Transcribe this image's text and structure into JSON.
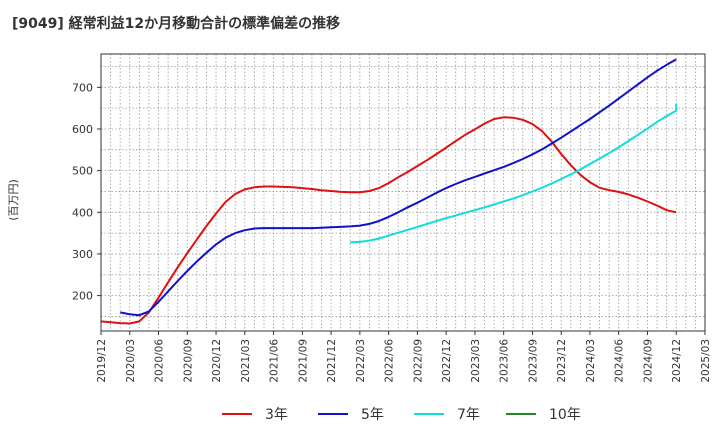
{
  "title": "[9049]  経常利益12か月移動合計の標準偏差の推移",
  "chart_data": {
    "type": "line",
    "title": "[9049]  経常利益12か月移動合計の標準偏差の推移",
    "ylabel": "(百万円)",
    "xlabel": "",
    "ylim": [
      115,
      780
    ],
    "yticks": [
      200,
      300,
      400,
      500,
      600,
      700
    ],
    "xlim": [
      "2019/12",
      "2025/03"
    ],
    "xticks": [
      "2019/12",
      "2020/03",
      "2020/06",
      "2020/09",
      "2020/12",
      "2021/03",
      "2021/06",
      "2021/09",
      "2021/12",
      "2022/03",
      "2022/06",
      "2022/09",
      "2022/12",
      "2023/03",
      "2023/06",
      "2023/09",
      "2023/12",
      "2024/03",
      "2024/06",
      "2024/09",
      "2024/12",
      "2025/03"
    ],
    "grid": true,
    "legend_position": "bottom",
    "series": [
      {
        "name": "3年",
        "color": "#dd1111",
        "points": [
          [
            "2019/12",
            138
          ],
          [
            "2020/01",
            136
          ],
          [
            "2020/02",
            134
          ],
          [
            "2020/03",
            133
          ],
          [
            "2020/04",
            138
          ],
          [
            "2020/05",
            160
          ],
          [
            "2020/06",
            195
          ],
          [
            "2020/07",
            232
          ],
          [
            "2020/08",
            268
          ],
          [
            "2020/09",
            302
          ],
          [
            "2020/10",
            335
          ],
          [
            "2020/11",
            367
          ],
          [
            "2020/12",
            397
          ],
          [
            "2021/01",
            425
          ],
          [
            "2021/02",
            444
          ],
          [
            "2021/03",
            455
          ],
          [
            "2021/04",
            460
          ],
          [
            "2021/05",
            462
          ],
          [
            "2021/06",
            462
          ],
          [
            "2021/07",
            461
          ],
          [
            "2021/08",
            460
          ],
          [
            "2021/09",
            458
          ],
          [
            "2021/10",
            456
          ],
          [
            "2021/11",
            453
          ],
          [
            "2021/12",
            451
          ],
          [
            "2022/01",
            449
          ],
          [
            "2022/02",
            448
          ],
          [
            "2022/03",
            448
          ],
          [
            "2022/04",
            451
          ],
          [
            "2022/05",
            458
          ],
          [
            "2022/06",
            470
          ],
          [
            "2022/07",
            484
          ],
          [
            "2022/08",
            497
          ],
          [
            "2022/09",
            511
          ],
          [
            "2022/10",
            525
          ],
          [
            "2022/11",
            540
          ],
          [
            "2022/12",
            555
          ],
          [
            "2023/01",
            571
          ],
          [
            "2023/02",
            586
          ],
          [
            "2023/03",
            599
          ],
          [
            "2023/04",
            613
          ],
          [
            "2023/05",
            624
          ],
          [
            "2023/06",
            628
          ],
          [
            "2023/07",
            627
          ],
          [
            "2023/08",
            622
          ],
          [
            "2023/09",
            612
          ],
          [
            "2023/10",
            595
          ],
          [
            "2023/11",
            570
          ],
          [
            "2023/12",
            540
          ],
          [
            "2024/01",
            513
          ],
          [
            "2024/02",
            490
          ],
          [
            "2024/03",
            472
          ],
          [
            "2024/04",
            459
          ],
          [
            "2024/05",
            453
          ],
          [
            "2024/06",
            449
          ],
          [
            "2024/07",
            443
          ],
          [
            "2024/08",
            435
          ],
          [
            "2024/09",
            426
          ],
          [
            "2024/10",
            416
          ],
          [
            "2024/11",
            405
          ],
          [
            "2024/12",
            400
          ]
        ]
      },
      {
        "name": "5年",
        "color": "#1111cc",
        "points": [
          [
            "2020/02",
            160
          ],
          [
            "2020/03",
            155
          ],
          [
            "2020/04",
            153
          ],
          [
            "2020/05",
            162
          ],
          [
            "2020/06",
            185
          ],
          [
            "2020/07",
            210
          ],
          [
            "2020/08",
            235
          ],
          [
            "2020/09",
            259
          ],
          [
            "2020/10",
            282
          ],
          [
            "2020/11",
            303
          ],
          [
            "2020/12",
            323
          ],
          [
            "2021/01",
            339
          ],
          [
            "2021/02",
            350
          ],
          [
            "2021/03",
            357
          ],
          [
            "2021/04",
            361
          ],
          [
            "2021/05",
            362
          ],
          [
            "2021/06",
            362
          ],
          [
            "2021/07",
            362
          ],
          [
            "2021/08",
            362
          ],
          [
            "2021/09",
            362
          ],
          [
            "2021/10",
            362
          ],
          [
            "2021/11",
            363
          ],
          [
            "2021/12",
            364
          ],
          [
            "2022/01",
            365
          ],
          [
            "2022/02",
            366
          ],
          [
            "2022/03",
            368
          ],
          [
            "2022/04",
            372
          ],
          [
            "2022/05",
            379
          ],
          [
            "2022/06",
            389
          ],
          [
            "2022/07",
            400
          ],
          [
            "2022/08",
            412
          ],
          [
            "2022/09",
            423
          ],
          [
            "2022/10",
            435
          ],
          [
            "2022/11",
            447
          ],
          [
            "2022/12",
            458
          ],
          [
            "2023/01",
            468
          ],
          [
            "2023/02",
            477
          ],
          [
            "2023/03",
            485
          ],
          [
            "2023/04",
            493
          ],
          [
            "2023/05",
            501
          ],
          [
            "2023/06",
            509
          ],
          [
            "2023/07",
            518
          ],
          [
            "2023/08",
            528
          ],
          [
            "2023/09",
            539
          ],
          [
            "2023/10",
            551
          ],
          [
            "2023/11",
            565
          ],
          [
            "2023/12",
            579
          ],
          [
            "2024/01",
            594
          ],
          [
            "2024/02",
            609
          ],
          [
            "2024/03",
            624
          ],
          [
            "2024/04",
            640
          ],
          [
            "2024/05",
            656
          ],
          [
            "2024/06",
            673
          ],
          [
            "2024/07",
            690
          ],
          [
            "2024/08",
            707
          ],
          [
            "2024/09",
            724
          ],
          [
            "2024/10",
            740
          ],
          [
            "2024/11",
            754
          ],
          [
            "2024/12",
            767
          ]
        ]
      },
      {
        "name": "7年",
        "color": "#11dddd",
        "points": [
          [
            "2022/02",
            328
          ],
          [
            "2022/03",
            329
          ],
          [
            "2022/04",
            332
          ],
          [
            "2022/05",
            337
          ],
          [
            "2022/06",
            344
          ],
          [
            "2022/07",
            351
          ],
          [
            "2022/08",
            358
          ],
          [
            "2022/09",
            365
          ],
          [
            "2022/10",
            372
          ],
          [
            "2022/11",
            379
          ],
          [
            "2022/12",
            386
          ],
          [
            "2023/01",
            392
          ],
          [
            "2023/02",
            399
          ],
          [
            "2023/03",
            405
          ],
          [
            "2023/04",
            412
          ],
          [
            "2023/05",
            419
          ],
          [
            "2023/06",
            426
          ],
          [
            "2023/07",
            433
          ],
          [
            "2023/08",
            441
          ],
          [
            "2023/09",
            450
          ],
          [
            "2023/10",
            459
          ],
          [
            "2023/11",
            469
          ],
          [
            "2023/12",
            480
          ],
          [
            "2024/01",
            491
          ],
          [
            "2024/02",
            503
          ],
          [
            "2024/03",
            516
          ],
          [
            "2024/04",
            529
          ],
          [
            "2024/05",
            542
          ],
          [
            "2024/06",
            556
          ],
          [
            "2024/07",
            571
          ],
          [
            "2024/08",
            586
          ],
          [
            "2024/09",
            601
          ],
          [
            "2024/10",
            617
          ],
          [
            "2024/11",
            631
          ],
          [
            "2024/12",
            644
          ],
          [
            "2024/12",
            660
          ]
        ]
      },
      {
        "name": "10年",
        "color": "#228822",
        "points": []
      }
    ]
  }
}
